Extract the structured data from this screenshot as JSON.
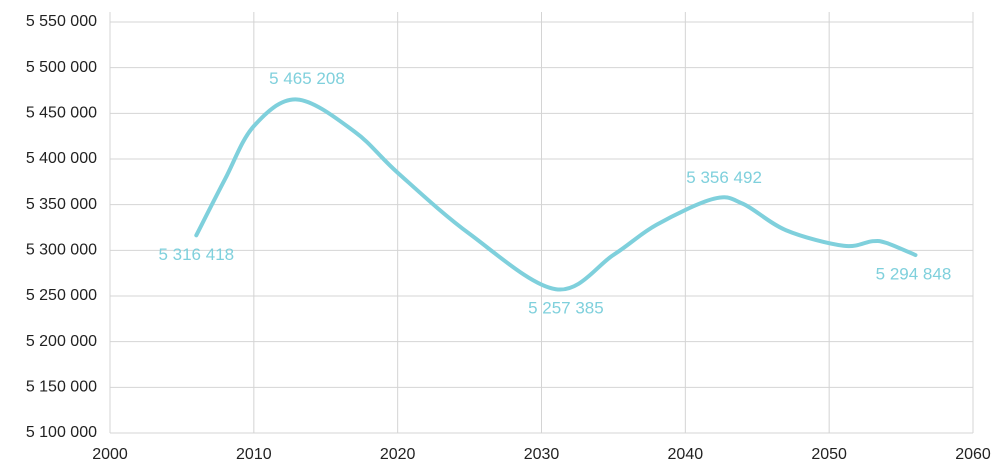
{
  "chart_data": {
    "type": "line",
    "x": [
      2006,
      2008,
      2010,
      2013,
      2017,
      2020,
      2025,
      2031,
      2035,
      2038,
      2042,
      2044,
      2047,
      2051,
      2053,
      2054,
      2056
    ],
    "series": [
      {
        "color": "#7fd0dc",
        "values": [
          5316418,
          5378000,
          5436000,
          5465208,
          5430000,
          5385000,
          5318000,
          5257385,
          5295000,
          5328000,
          5356492,
          5351000,
          5322000,
          5305000,
          5310000,
          5308000,
          5294848
        ],
        "value_labels": [
          "5 316 418",
          null,
          null,
          "5 465 208",
          null,
          null,
          null,
          "5 257 385",
          null,
          null,
          "5 356 492",
          null,
          null,
          null,
          null,
          null,
          "5 294 848"
        ]
      }
    ],
    "xlim": [
      2000,
      2060
    ],
    "xticks": [
      2000,
      2010,
      2020,
      2030,
      2040,
      2050,
      2060
    ],
    "ylim": [
      5100000,
      5550000
    ],
    "yticks": [
      {
        "value": 5100000,
        "label": "5 100 000"
      },
      {
        "value": 5150000,
        "label": "5 150 000"
      },
      {
        "value": 5200000,
        "label": "5 200 000"
      },
      {
        "value": 5250000,
        "label": "5 250 000"
      },
      {
        "value": 5300000,
        "label": "5 300 000"
      },
      {
        "value": 5350000,
        "label": "5 350 000"
      },
      {
        "value": 5400000,
        "label": "5 400 000"
      },
      {
        "value": 5450000,
        "label": "5 450 000"
      },
      {
        "value": 5500000,
        "label": "5 500 000"
      },
      {
        "value": 5550000,
        "label": "5 550 000"
      }
    ],
    "grid": true
  }
}
